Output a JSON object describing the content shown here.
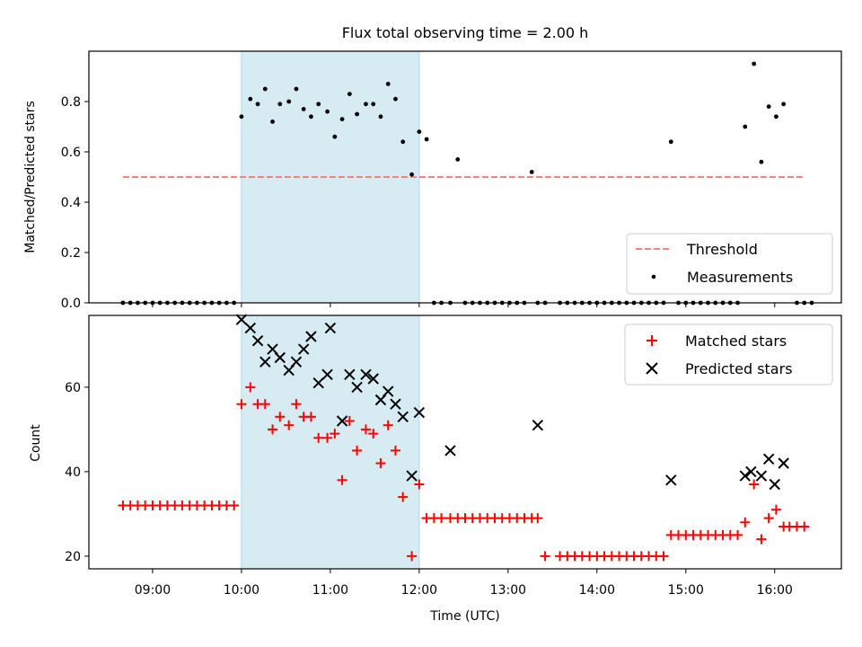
{
  "chart_data": [
    {
      "type": "scatter",
      "title": "Flux total observing time = 2.00 h",
      "xlabel": "",
      "ylabel": "Matched/Predicted stars",
      "xlim": [
        "08:17",
        "16:45"
      ],
      "ylim": [
        0,
        1.0
      ],
      "yticks": [
        0.0,
        0.2,
        0.4,
        0.6,
        0.8
      ],
      "ytick_labels": [
        "0.0",
        "0.2",
        "0.4",
        "0.6",
        "0.8"
      ],
      "grid": false,
      "legend_position": "lower-right",
      "highlight_span": [
        "10:00",
        "12:00"
      ],
      "series": [
        {
          "name": "Threshold",
          "kind": "dashed-line",
          "color": "#ff7f7f",
          "x": [
            "08:40",
            "16:20"
          ],
          "y": [
            0.5,
            0.5
          ]
        },
        {
          "name": "Measurements",
          "kind": "dot",
          "color": "#000000",
          "x": [
            "08:40",
            "08:45",
            "08:50",
            "08:55",
            "09:00",
            "09:05",
            "09:10",
            "09:15",
            "09:20",
            "09:25",
            "09:30",
            "09:35",
            "09:40",
            "09:45",
            "09:50",
            "09:55",
            "10:00",
            "10:06",
            "10:11",
            "10:16",
            "10:21",
            "10:26",
            "10:32",
            "10:37",
            "10:42",
            "10:47",
            "10:52",
            "10:58",
            "11:03",
            "11:08",
            "11:13",
            "11:18",
            "11:24",
            "11:29",
            "11:34",
            "11:39",
            "11:44",
            "11:49",
            "11:55",
            "12:00",
            "12:05",
            "12:10",
            "12:15",
            "12:21",
            "12:26",
            "12:31",
            "12:36",
            "12:41",
            "12:46",
            "12:51",
            "12:56",
            "13:01",
            "13:06",
            "13:11",
            "13:16",
            "13:20",
            "13:25",
            "13:35",
            "13:40",
            "13:45",
            "13:50",
            "13:55",
            "14:00",
            "14:05",
            "14:10",
            "14:15",
            "14:20",
            "14:25",
            "14:30",
            "14:35",
            "14:40",
            "14:45",
            "14:50",
            "14:55",
            "15:00",
            "15:05",
            "15:10",
            "15:15",
            "15:20",
            "15:25",
            "15:30",
            "15:35",
            "15:40",
            "15:46",
            "15:51",
            "15:56",
            "16:01",
            "16:06",
            "16:15",
            "16:20",
            "16:25"
          ],
          "y": [
            0,
            0,
            0,
            0,
            0,
            0,
            0,
            0,
            0,
            0,
            0,
            0,
            0,
            0,
            0,
            0,
            0.74,
            0.81,
            0.79,
            0.85,
            0.72,
            0.79,
            0.8,
            0.85,
            0.77,
            0.74,
            0.79,
            0.76,
            0.66,
            0.73,
            0.83,
            0.75,
            0.79,
            0.79,
            0.74,
            0.87,
            0.81,
            0.64,
            0.51,
            0.68,
            0.65,
            0,
            0,
            0,
            0.57,
            0,
            0,
            0,
            0,
            0,
            0,
            0,
            0,
            0,
            0.52,
            0,
            0,
            0,
            0,
            0,
            0,
            0,
            0,
            0,
            0,
            0,
            0,
            0,
            0,
            0,
            0,
            0,
            0.64,
            0,
            0,
            0,
            0,
            0,
            0,
            0,
            0,
            0,
            0.7,
            0.95,
            0.56,
            0.78,
            0.74,
            0.79,
            0,
            0,
            0
          ]
        }
      ]
    },
    {
      "type": "scatter",
      "title": "",
      "xlabel": "Time (UTC)",
      "ylabel": "Count",
      "xlim": [
        "08:17",
        "16:45"
      ],
      "ylim": [
        17,
        77
      ],
      "yticks": [
        20,
        40,
        60
      ],
      "ytick_labels": [
        "20",
        "40",
        "60"
      ],
      "xtick_labels": [
        "09:00",
        "10:00",
        "11:00",
        "12:00",
        "13:00",
        "14:00",
        "15:00",
        "16:00"
      ],
      "grid": false,
      "legend_position": "upper-right",
      "highlight_span": [
        "10:00",
        "12:00"
      ],
      "series": [
        {
          "name": "Matched stars",
          "kind": "plus",
          "color": "#ff0000",
          "x": [
            "08:40",
            "08:45",
            "08:50",
            "08:55",
            "09:00",
            "09:05",
            "09:10",
            "09:15",
            "09:20",
            "09:25",
            "09:30",
            "09:35",
            "09:40",
            "09:45",
            "09:50",
            "09:55",
            "10:00",
            "10:06",
            "10:11",
            "10:16",
            "10:21",
            "10:26",
            "10:32",
            "10:37",
            "10:42",
            "10:47",
            "10:52",
            "10:58",
            "11:03",
            "11:08",
            "11:13",
            "11:18",
            "11:24",
            "11:29",
            "11:34",
            "11:39",
            "11:44",
            "11:49",
            "11:55",
            "12:00",
            "12:05",
            "12:10",
            "12:15",
            "12:21",
            "12:26",
            "12:31",
            "12:36",
            "12:41",
            "12:46",
            "12:51",
            "12:56",
            "13:01",
            "13:06",
            "13:11",
            "13:16",
            "13:20",
            "13:25",
            "13:35",
            "13:40",
            "13:45",
            "13:50",
            "13:55",
            "14:00",
            "14:05",
            "14:10",
            "14:15",
            "14:20",
            "14:25",
            "14:30",
            "14:35",
            "14:40",
            "14:45",
            "14:50",
            "14:55",
            "15:00",
            "15:05",
            "15:10",
            "15:15",
            "15:20",
            "15:25",
            "15:30",
            "15:35",
            "15:40",
            "15:46",
            "15:51",
            "15:56",
            "16:01",
            "16:06",
            "16:10",
            "16:15",
            "16:20"
          ],
          "y": [
            32,
            32,
            32,
            32,
            32,
            32,
            32,
            32,
            32,
            32,
            32,
            32,
            32,
            32,
            32,
            32,
            56,
            60,
            56,
            56,
            50,
            53,
            51,
            56,
            53,
            53,
            48,
            48,
            49,
            38,
            52,
            45,
            50,
            49,
            42,
            51,
            45,
            34,
            20,
            37,
            29,
            29,
            29,
            29,
            29,
            29,
            29,
            29,
            29,
            29,
            29,
            29,
            29,
            29,
            29,
            29,
            20,
            20,
            20,
            20,
            20,
            20,
            20,
            20,
            20,
            20,
            20,
            20,
            20,
            20,
            20,
            20,
            25,
            25,
            25,
            25,
            25,
            25,
            25,
            25,
            25,
            25,
            28,
            37,
            24,
            29,
            31,
            27,
            27,
            27,
            27
          ]
        },
        {
          "name": "Predicted stars",
          "kind": "cross",
          "color": "#000000",
          "x": [
            "10:00",
            "10:06",
            "10:11",
            "10:16",
            "10:21",
            "10:26",
            "10:32",
            "10:37",
            "10:42",
            "10:47",
            "10:52",
            "10:58",
            "11:00",
            "11:08",
            "11:13",
            "11:18",
            "11:24",
            "11:29",
            "11:34",
            "11:39",
            "11:44",
            "11:49",
            "11:55",
            "12:00",
            "12:21",
            "13:20",
            "14:50",
            "15:40",
            "15:44",
            "15:51",
            "15:56",
            "16:00",
            "16:06"
          ],
          "y": [
            76,
            74,
            71,
            66,
            69,
            67,
            64,
            66,
            69,
            72,
            61,
            63,
            74,
            52,
            63,
            60,
            63,
            62,
            57,
            59,
            56,
            53,
            39,
            54,
            45,
            51,
            38,
            39,
            40,
            39,
            43,
            37,
            42
          ]
        }
      ]
    }
  ]
}
